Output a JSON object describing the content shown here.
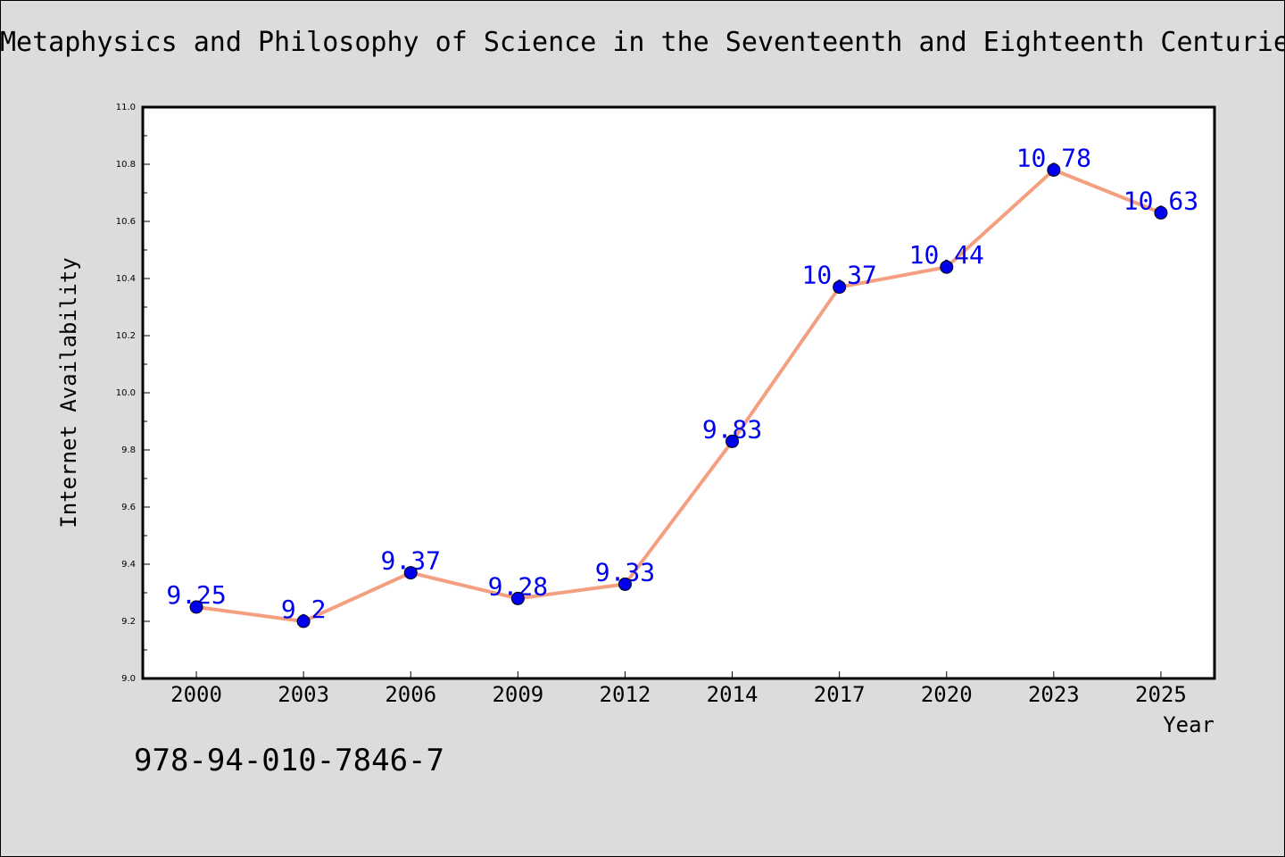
{
  "chart_data": {
    "type": "line",
    "title": "Metaphysics and Philosophy of Science in the Seventeenth and Eighteenth Centuries",
    "xlabel": "Year",
    "ylabel": "Internet Availability",
    "categories": [
      "2000",
      "2003",
      "2006",
      "2009",
      "2012",
      "2014",
      "2017",
      "2020",
      "2023",
      "2025"
    ],
    "values": [
      9.25,
      9.2,
      9.37,
      9.28,
      9.33,
      9.83,
      10.37,
      10.44,
      10.78,
      10.63
    ],
    "data_labels": [
      "9.25",
      "9.2",
      "9.37",
      "9.28",
      "9.33",
      "9.83",
      "10.37",
      "10.44",
      "10.78",
      "10.63"
    ],
    "ylim": [
      9.0,
      11.0
    ],
    "yticks": [
      "9.0",
      "9.2",
      "9.4",
      "9.6",
      "9.8",
      "10.0",
      "10.2",
      "10.4",
      "10.6",
      "10.8",
      "11.0"
    ],
    "grid": false,
    "line_color": "#f4a080",
    "marker_color": "#0000ee",
    "label_color": "#0000ee",
    "plot_background": "#ffffff"
  },
  "footer": {
    "isbn": "978-94-010-7846-7"
  }
}
